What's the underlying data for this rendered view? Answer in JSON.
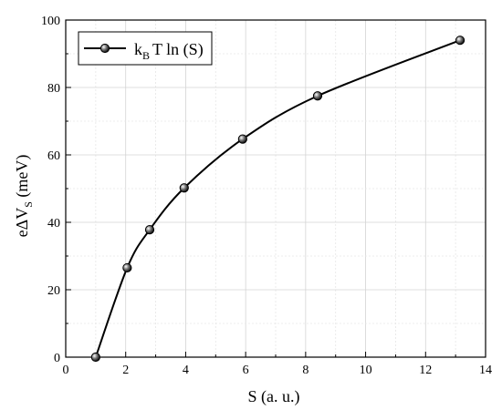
{
  "chart_data": {
    "type": "line",
    "xlabel": "S (a. u.)",
    "ylabel_parts": {
      "main": "eΔV",
      "sub": "S",
      "unit": " (meV)"
    },
    "xlim": [
      0,
      14
    ],
    "ylim": [
      0,
      100
    ],
    "xticks": [
      0,
      2,
      4,
      6,
      8,
      10,
      12,
      14
    ],
    "yticks": [
      0,
      20,
      40,
      60,
      80,
      100
    ],
    "grid": true,
    "legend_position": "top-left",
    "series": [
      {
        "name_parts": {
          "k": "k",
          "sub": "B",
          "rest": "T ln (S)"
        },
        "markers": true,
        "color": "#000000",
        "x": [
          1.0,
          2.05,
          2.8,
          3.95,
          5.9,
          8.4,
          13.15
        ],
        "y": [
          0.0,
          26.5,
          37.8,
          50.2,
          64.7,
          77.5,
          94.0
        ]
      }
    ]
  }
}
